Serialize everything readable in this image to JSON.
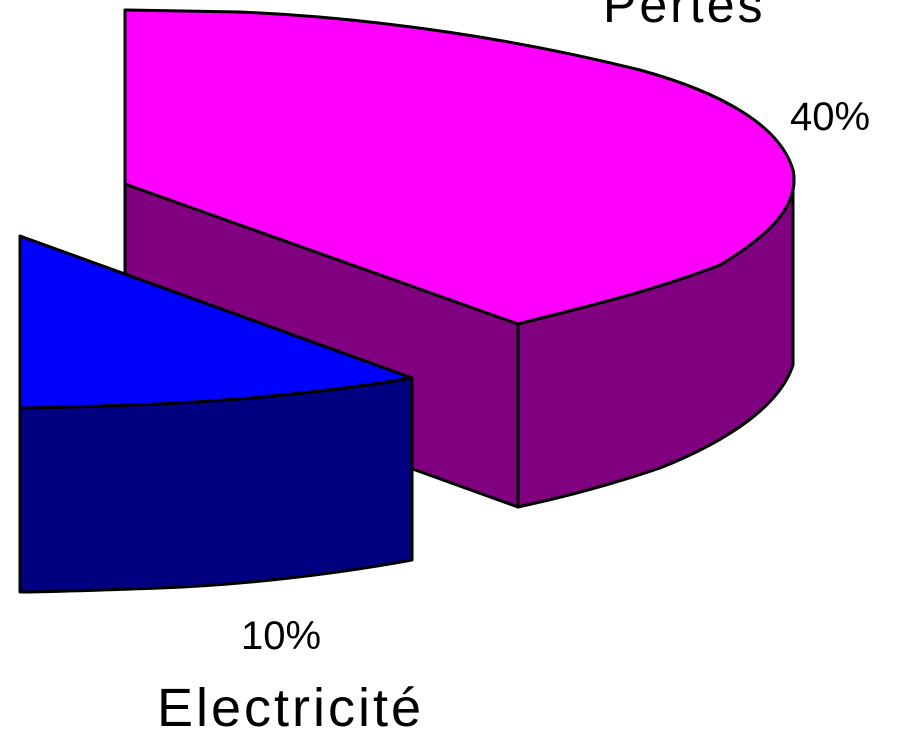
{
  "chart_data": {
    "type": "pie",
    "style": "3d-exploded",
    "slices": [
      {
        "name": "Pertes",
        "value": 40,
        "value_label": "40%",
        "top_color": "#FF00FF",
        "side_color": "#800080"
      },
      {
        "name": "Electricité",
        "value": 10,
        "value_label": "10%",
        "top_color": "#0000FF",
        "side_color": "#000080"
      }
    ]
  }
}
